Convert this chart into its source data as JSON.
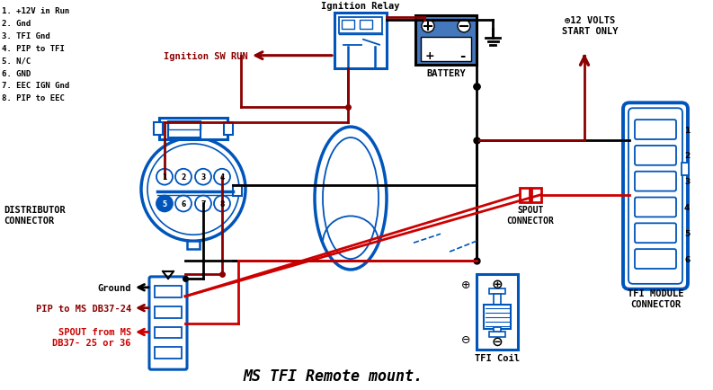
{
  "bg_color": "#ffffff",
  "dark_red": "#8B0000",
  "red": "#CC0000",
  "blue": "#0055BB",
  "black": "#000000",
  "title": "MS TFI Remote mount.",
  "pin_labels": [
    "1. +12V in Run",
    "2. Gnd",
    "3. TFI Gnd",
    "4. PIP to TFI",
    "5. N/C",
    "6. GND",
    "7. EEC IGN Gnd",
    "8. PIP to EEC"
  ],
  "dist_label_1": "DISTRIBUTOR",
  "dist_label_2": "CONNECTOR",
  "ignition_relay_label": "Ignition Relay",
  "ignition_sw_label": "Ignition SW RUN",
  "battery_label": "BATTERY",
  "volts_label": "⊕12 VOLTS\nSTART ONLY",
  "spout_label": "SPOUT\nCONNECTOR",
  "tfi_coil_label": "TFI Coil",
  "tfi_module_label_1": "TFI MODULE",
  "tfi_module_label_2": "CONNECTOR",
  "ground_label": "Ground",
  "pip_ms_label": "PIP to MS DB37-24",
  "spout_ms_label_1": "SPOUT from MS",
  "spout_ms_label_2": "DB37- 25 or 36"
}
